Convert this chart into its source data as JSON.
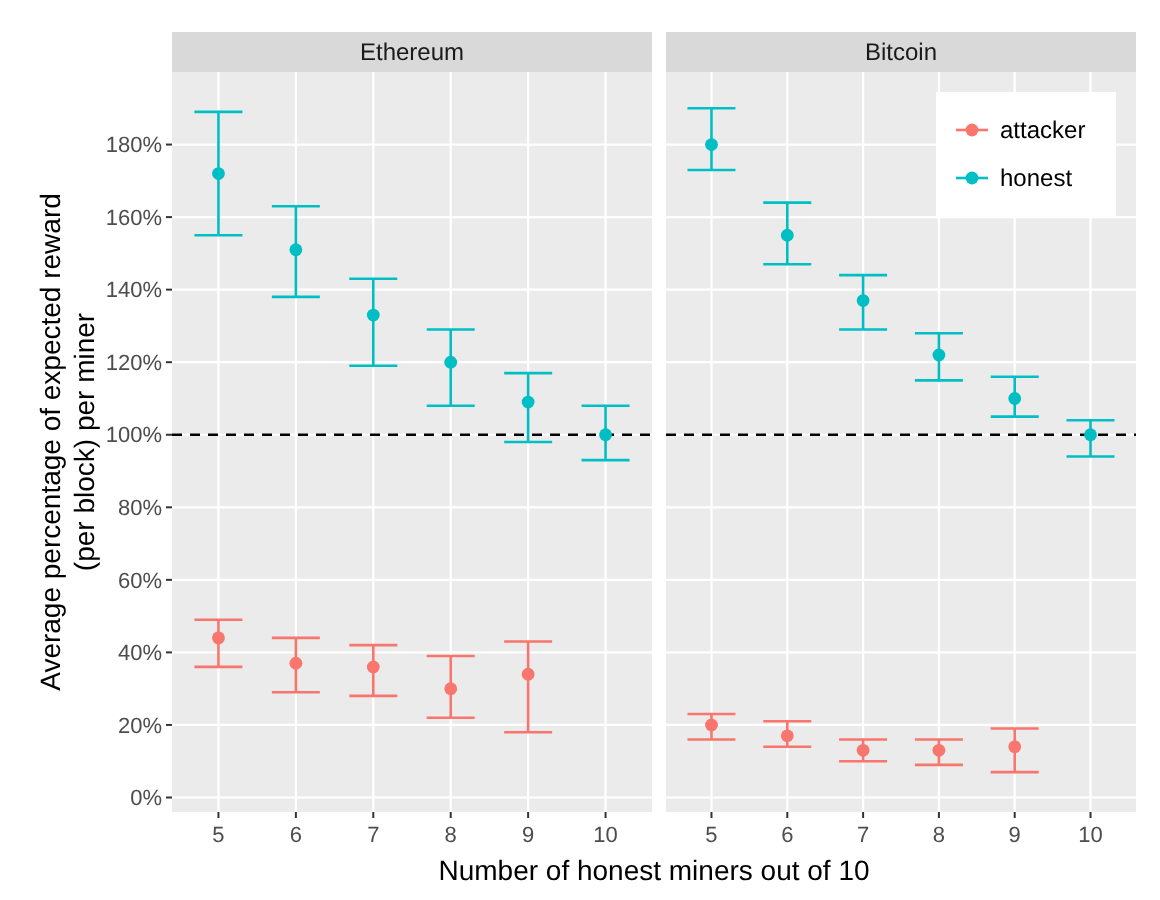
{
  "chart_data": [
    {
      "type": "scatter",
      "title": "Ethereum",
      "ylabel": "Average percentage of expected reward\n(per block) per miner",
      "xlabel": "Number of honest miners out of 10",
      "categories": [
        "5",
        "6",
        "7",
        "8",
        "9",
        "10"
      ],
      "ylim": [
        -4,
        200
      ],
      "yticks": [
        {
          "value": 0,
          "label": "0%"
        },
        {
          "value": 20,
          "label": "20%"
        },
        {
          "value": 40,
          "label": "40%"
        },
        {
          "value": 60,
          "label": "60%"
        },
        {
          "value": 80,
          "label": "80%"
        },
        {
          "value": 100,
          "label": "100%"
        },
        {
          "value": 120,
          "label": "120%"
        },
        {
          "value": 140,
          "label": "140%"
        },
        {
          "value": 160,
          "label": "160%"
        },
        {
          "value": 180,
          "label": "180%"
        }
      ],
      "grid": true,
      "marker": "circle",
      "ref_lines": [
        {
          "axis": "y",
          "value": 100,
          "color": "#000000",
          "line_style": "dashed"
        }
      ],
      "series": [
        {
          "color": "#f8766d",
          "values": [
            44,
            37,
            36,
            30,
            34,
            null
          ],
          "errors": [
            [
              36,
              49
            ],
            [
              29,
              44
            ],
            [
              28,
              42
            ],
            [
              22,
              39
            ],
            [
              18,
              43
            ],
            null
          ]
        },
        {
          "color": "#00bfc4",
          "values": [
            172,
            151,
            133,
            120,
            109,
            100
          ],
          "errors": [
            [
              155,
              189
            ],
            [
              138,
              163
            ],
            [
              119,
              143
            ],
            [
              108,
              129
            ],
            [
              98,
              117
            ],
            [
              93,
              108
            ]
          ]
        }
      ]
    },
    {
      "type": "scatter",
      "title": "Bitcoin",
      "categories": [
        "5",
        "6",
        "7",
        "8",
        "9",
        "10"
      ],
      "ylim": [
        -4,
        200
      ],
      "yticks": [
        {
          "value": 0,
          "label": null
        },
        {
          "value": 20,
          "label": null
        },
        {
          "value": 40,
          "label": null
        },
        {
          "value": 60,
          "label": null
        },
        {
          "value": 80,
          "label": null
        },
        {
          "value": 100,
          "label": null
        },
        {
          "value": 120,
          "label": null
        },
        {
          "value": 140,
          "label": null
        },
        {
          "value": 160,
          "label": null
        },
        {
          "value": 180,
          "label": null
        }
      ],
      "tick_labels": "x",
      "grid": true,
      "marker": "circle",
      "legend": "top right",
      "ref_lines": [
        {
          "axis": "y",
          "value": 100,
          "color": "#000000",
          "line_style": "dashed"
        }
      ],
      "series": [
        {
          "name": "attacker",
          "color": "#f8766d",
          "values": [
            20,
            17,
            13,
            13,
            14,
            null
          ],
          "errors": [
            [
              16,
              23
            ],
            [
              14,
              21
            ],
            [
              10,
              16
            ],
            [
              9,
              16
            ],
            [
              7,
              19
            ],
            null
          ]
        },
        {
          "name": "honest",
          "color": "#00bfc4",
          "values": [
            180,
            155,
            137,
            122,
            110,
            100
          ],
          "errors": [
            [
              173,
              190
            ],
            [
              147,
              164
            ],
            [
              129,
              144
            ],
            [
              115,
              128
            ],
            [
              105,
              116
            ],
            [
              94,
              104
            ]
          ]
        }
      ]
    }
  ]
}
